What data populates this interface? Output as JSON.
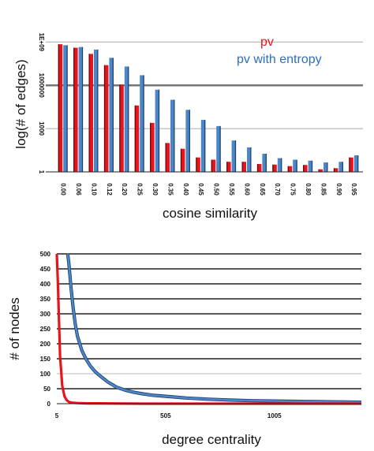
{
  "chart_data": [
    {
      "type": "bar",
      "title": "",
      "xlabel": "cosine similarity",
      "ylabel": "log(# of edges)",
      "yscale": "log",
      "ylim": [
        1,
        10000000000
      ],
      "grid": true,
      "legend_position": "top-right",
      "y_ticks": [
        1,
        1000,
        1000000,
        1000000000
      ],
      "y_tick_labels": [
        "1",
        "1000",
        "1000000",
        "1E+09"
      ],
      "categories": [
        "0.00",
        "0.06",
        "0.10",
        "0.12",
        "0.20",
        "0.25",
        "0.30",
        "0.35",
        "0.40",
        "0.45",
        "0.50",
        "0.55",
        "0.60",
        "0.65",
        "0.70",
        "0.75",
        "0.80",
        "0.85",
        "0.90",
        "0.95"
      ],
      "series": [
        {
          "name": "pv",
          "color": "#e8141b",
          "values": [
            700000000,
            400000000,
            150000000,
            25000000,
            1100000,
            40000,
            2500,
            100,
            40,
            10,
            7,
            5,
            5,
            3.5,
            3.2,
            2.5,
            3,
            1.5,
            1.8,
            10
          ]
        },
        {
          "name": "pv with entropy",
          "color": "#4a86c8",
          "values": [
            600000000,
            450000000,
            300000000,
            80000000,
            20000000,
            5000000,
            500000,
            100000,
            20000,
            4000,
            1500,
            150,
            50,
            18,
            9,
            7,
            6,
            4.5,
            5,
            14
          ]
        }
      ]
    },
    {
      "type": "line",
      "title": "",
      "xlabel": "degree centrality",
      "ylabel": "# of nodes",
      "ylim": [
        0,
        500
      ],
      "y_ticks": [
        0,
        50,
        100,
        150,
        200,
        250,
        300,
        350,
        400,
        450,
        500
      ],
      "y_tick_labels": [
        "0",
        "50",
        "100",
        "150",
        "200",
        "250",
        "300",
        "350",
        "400",
        "450",
        "500"
      ],
      "x_ticks": [
        5,
        505,
        1005
      ],
      "x_tick_labels": [
        "5",
        "505",
        "1005"
      ],
      "xlim": [
        5,
        1405
      ],
      "grid": true,
      "series": [
        {
          "name": "pv",
          "color": "#e8141b",
          "x": [
            5,
            10,
            20,
            30,
            40,
            50,
            60,
            70,
            80,
            100,
            150,
            200,
            400,
            600,
            1000,
            1405
          ],
          "y": [
            500,
            400,
            160,
            60,
            25,
            12,
            6,
            4,
            3,
            2,
            1,
            1,
            0,
            0,
            0,
            0
          ]
        },
        {
          "name": "pv with entropy",
          "color": "#4a86c8",
          "x": [
            55,
            60,
            70,
            80,
            90,
            100,
            120,
            140,
            160,
            180,
            200,
            240,
            280,
            320,
            360,
            400,
            450,
            500,
            550,
            600,
            700,
            800,
            900,
            1000,
            1100,
            1200,
            1300,
            1405
          ],
          "y": [
            500,
            470,
            390,
            320,
            265,
            225,
            178,
            148,
            125,
            108,
            95,
            72,
            55,
            45,
            38,
            33,
            28,
            25,
            22,
            19,
            15,
            12,
            10,
            9,
            8,
            7,
            6,
            5
          ]
        }
      ]
    }
  ]
}
